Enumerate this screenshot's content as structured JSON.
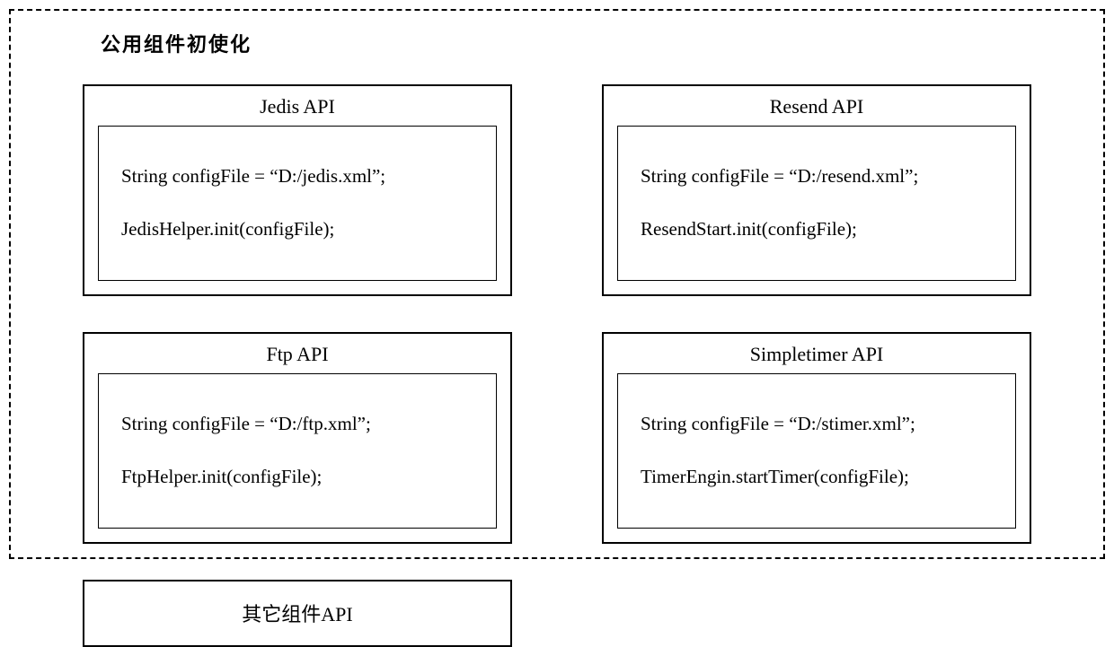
{
  "diagram": {
    "title": "公用组件初使化",
    "container_border_style": "dashed",
    "container_border_color": "#000000",
    "container_border_width": 2,
    "background_color": "#ffffff",
    "layout": {
      "type": "grid",
      "columns": 2,
      "rows": 3,
      "column_gap": 100,
      "row_gap": 40
    },
    "boxes": {
      "jedis": {
        "header": "Jedis API",
        "code_line1": "String configFile = “D:/jedis.xml”;",
        "code_line2": "JedisHelper.init(configFile);",
        "grid_position": {
          "col": 1,
          "row": 1
        }
      },
      "resend": {
        "header": "Resend API",
        "code_line1": "String configFile = “D:/resend.xml”;",
        "code_line2": "ResendStart.init(configFile);",
        "grid_position": {
          "col": 2,
          "row": 1
        }
      },
      "ftp": {
        "header": "Ftp API",
        "code_line1": "String configFile = “D:/ftp.xml”;",
        "code_line2": "FtpHelper.init(configFile);",
        "grid_position": {
          "col": 1,
          "row": 2
        }
      },
      "simpletimer": {
        "header": "Simpletimer API",
        "code_line1": "String configFile = “D:/stimer.xml”;",
        "code_line2": "TimerEngin.startTimer(configFile);",
        "grid_position": {
          "col": 2,
          "row": 2
        }
      },
      "other": {
        "label": "其它组件API",
        "grid_position": {
          "col": 1,
          "row": 3
        }
      }
    },
    "box_style": {
      "border_color": "#000000",
      "border_width": 2,
      "inner_border_width": 1,
      "header_fontsize": 22,
      "code_fontsize": 21,
      "font_family": "Times New Roman"
    },
    "title_style": {
      "fontsize": 22,
      "font_weight": "bold",
      "letter_spacing": 2
    }
  }
}
